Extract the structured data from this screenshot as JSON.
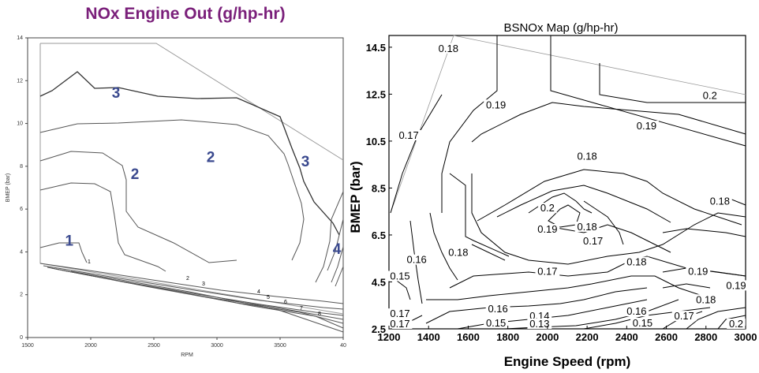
{
  "left": {
    "title": "NOx Engine Out (g/hp-hr)",
    "xlabel": "RPM",
    "ylabel": "BMEP (bar)",
    "xticks": [
      "1500",
      "2000",
      "2500",
      "3000",
      "3500",
      "40"
    ],
    "yticks": [
      "0",
      "2",
      "4",
      "6",
      "8",
      "10",
      "12",
      "14"
    ],
    "region_labels": [
      "3",
      "2",
      "2",
      "3",
      "1",
      "4"
    ],
    "contour_labels": [
      "1",
      "2",
      "3",
      "4",
      "5",
      "6",
      "7",
      "8"
    ]
  },
  "right": {
    "title": "BSNOx Map (g/hp-hr)",
    "xlabel": "Engine Speed (rpm)",
    "ylabel": "BMEP (bar)",
    "xticks": [
      "1200",
      "1400",
      "1600",
      "1800",
      "2000",
      "2200",
      "2400",
      "2600",
      "2800",
      "3000"
    ],
    "yticks": [
      "2.5",
      "4.5",
      "6.5",
      "8.5",
      "10.5",
      "12.5",
      "14.5"
    ],
    "contour_labels": [
      "0.18",
      "0.2",
      "0.19",
      "0.19",
      "0.17",
      "0.18",
      "0.18",
      "0.2",
      "0.19",
      "0.18",
      "0.17",
      "0.18",
      "0.16",
      "0.18",
      "0.15",
      "0.17",
      "0.19",
      "0.19",
      "0.18",
      "0.16",
      "0.14",
      "0.17",
      "0.15",
      "0.13",
      "0.16",
      "0.15",
      "0.17",
      "0.2",
      "0.17"
    ]
  },
  "chart_data": [
    {
      "type": "heatmap",
      "title": "NOx Engine Out (g/hp-hr)",
      "xlabel": "RPM",
      "ylabel": "BMEP (bar)",
      "xlim": [
        1500,
        4000
      ],
      "ylim": [
        0,
        14
      ],
      "contour_levels": [
        1,
        2,
        3,
        4,
        5,
        6,
        7,
        8
      ],
      "region_labels": [
        {
          "text": "3",
          "x": 2200,
          "y": 11.2
        },
        {
          "text": "2",
          "x": 2950,
          "y": 8.2
        },
        {
          "text": "2",
          "x": 2350,
          "y": 7.4
        },
        {
          "text": "3",
          "x": 3700,
          "y": 8.0
        },
        {
          "text": "1",
          "x": 1830,
          "y": 4.3
        },
        {
          "text": "4",
          "x": 3950,
          "y": 3.9
        }
      ]
    },
    {
      "type": "heatmap",
      "title": "BSNOx Map (g/hp-hr)",
      "xlabel": "Engine Speed (rpm)",
      "ylabel": "BMEP (bar)",
      "xlim": [
        1200,
        3000
      ],
      "ylim": [
        2.5,
        15
      ],
      "contour_levels": [
        0.13,
        0.14,
        0.15,
        0.16,
        0.17,
        0.18,
        0.19,
        0.2
      ],
      "labels": [
        {
          "text": "0.18",
          "x": 1500,
          "y": 14.3
        },
        {
          "text": "0.2",
          "x": 2000,
          "y": 7.5
        },
        {
          "text": "0.19",
          "x": 1740,
          "y": 11.9
        },
        {
          "text": "0.19",
          "x": 2500,
          "y": 11.0
        },
        {
          "text": "0.17",
          "x": 1300,
          "y": 10.6
        },
        {
          "text": "0.18",
          "x": 2200,
          "y": 9.7
        },
        {
          "text": "0.18",
          "x": 2870,
          "y": 7.8
        },
        {
          "text": "0.2",
          "x": 2820,
          "y": 12.3
        },
        {
          "text": "0.19",
          "x": 2000,
          "y": 6.6
        },
        {
          "text": "0.18",
          "x": 2200,
          "y": 6.7
        },
        {
          "text": "0.17",
          "x": 2230,
          "y": 6.1
        },
        {
          "text": "0.18",
          "x": 2450,
          "y": 5.2
        },
        {
          "text": "0.16",
          "x": 1340,
          "y": 5.3
        },
        {
          "text": "0.18",
          "x": 1550,
          "y": 5.6
        },
        {
          "text": "0.15",
          "x": 1200,
          "y": 4.6
        },
        {
          "text": "0.17",
          "x": 2000,
          "y": 4.8
        },
        {
          "text": "0.19",
          "x": 2760,
          "y": 4.8
        },
        {
          "text": "0.19",
          "x": 3000,
          "y": 4.2
        },
        {
          "text": "0.18",
          "x": 2800,
          "y": 3.6
        },
        {
          "text": "0.16",
          "x": 1750,
          "y": 3.2
        },
        {
          "text": "0.14",
          "x": 1960,
          "y": 2.9
        },
        {
          "text": "0.17",
          "x": 1240,
          "y": 3.0
        },
        {
          "text": "0.15",
          "x": 1740,
          "y": 2.6
        },
        {
          "text": "0.13",
          "x": 1960,
          "y": 2.5
        },
        {
          "text": "0.16",
          "x": 2450,
          "y": 3.1
        },
        {
          "text": "0.15",
          "x": 2480,
          "y": 2.6
        },
        {
          "text": "0.17",
          "x": 2690,
          "y": 2.9
        },
        {
          "text": "0.2",
          "x": 2990,
          "y": 2.5
        },
        {
          "text": "0.17",
          "x": 1250,
          "y": 2.5
        }
      ]
    }
  ]
}
